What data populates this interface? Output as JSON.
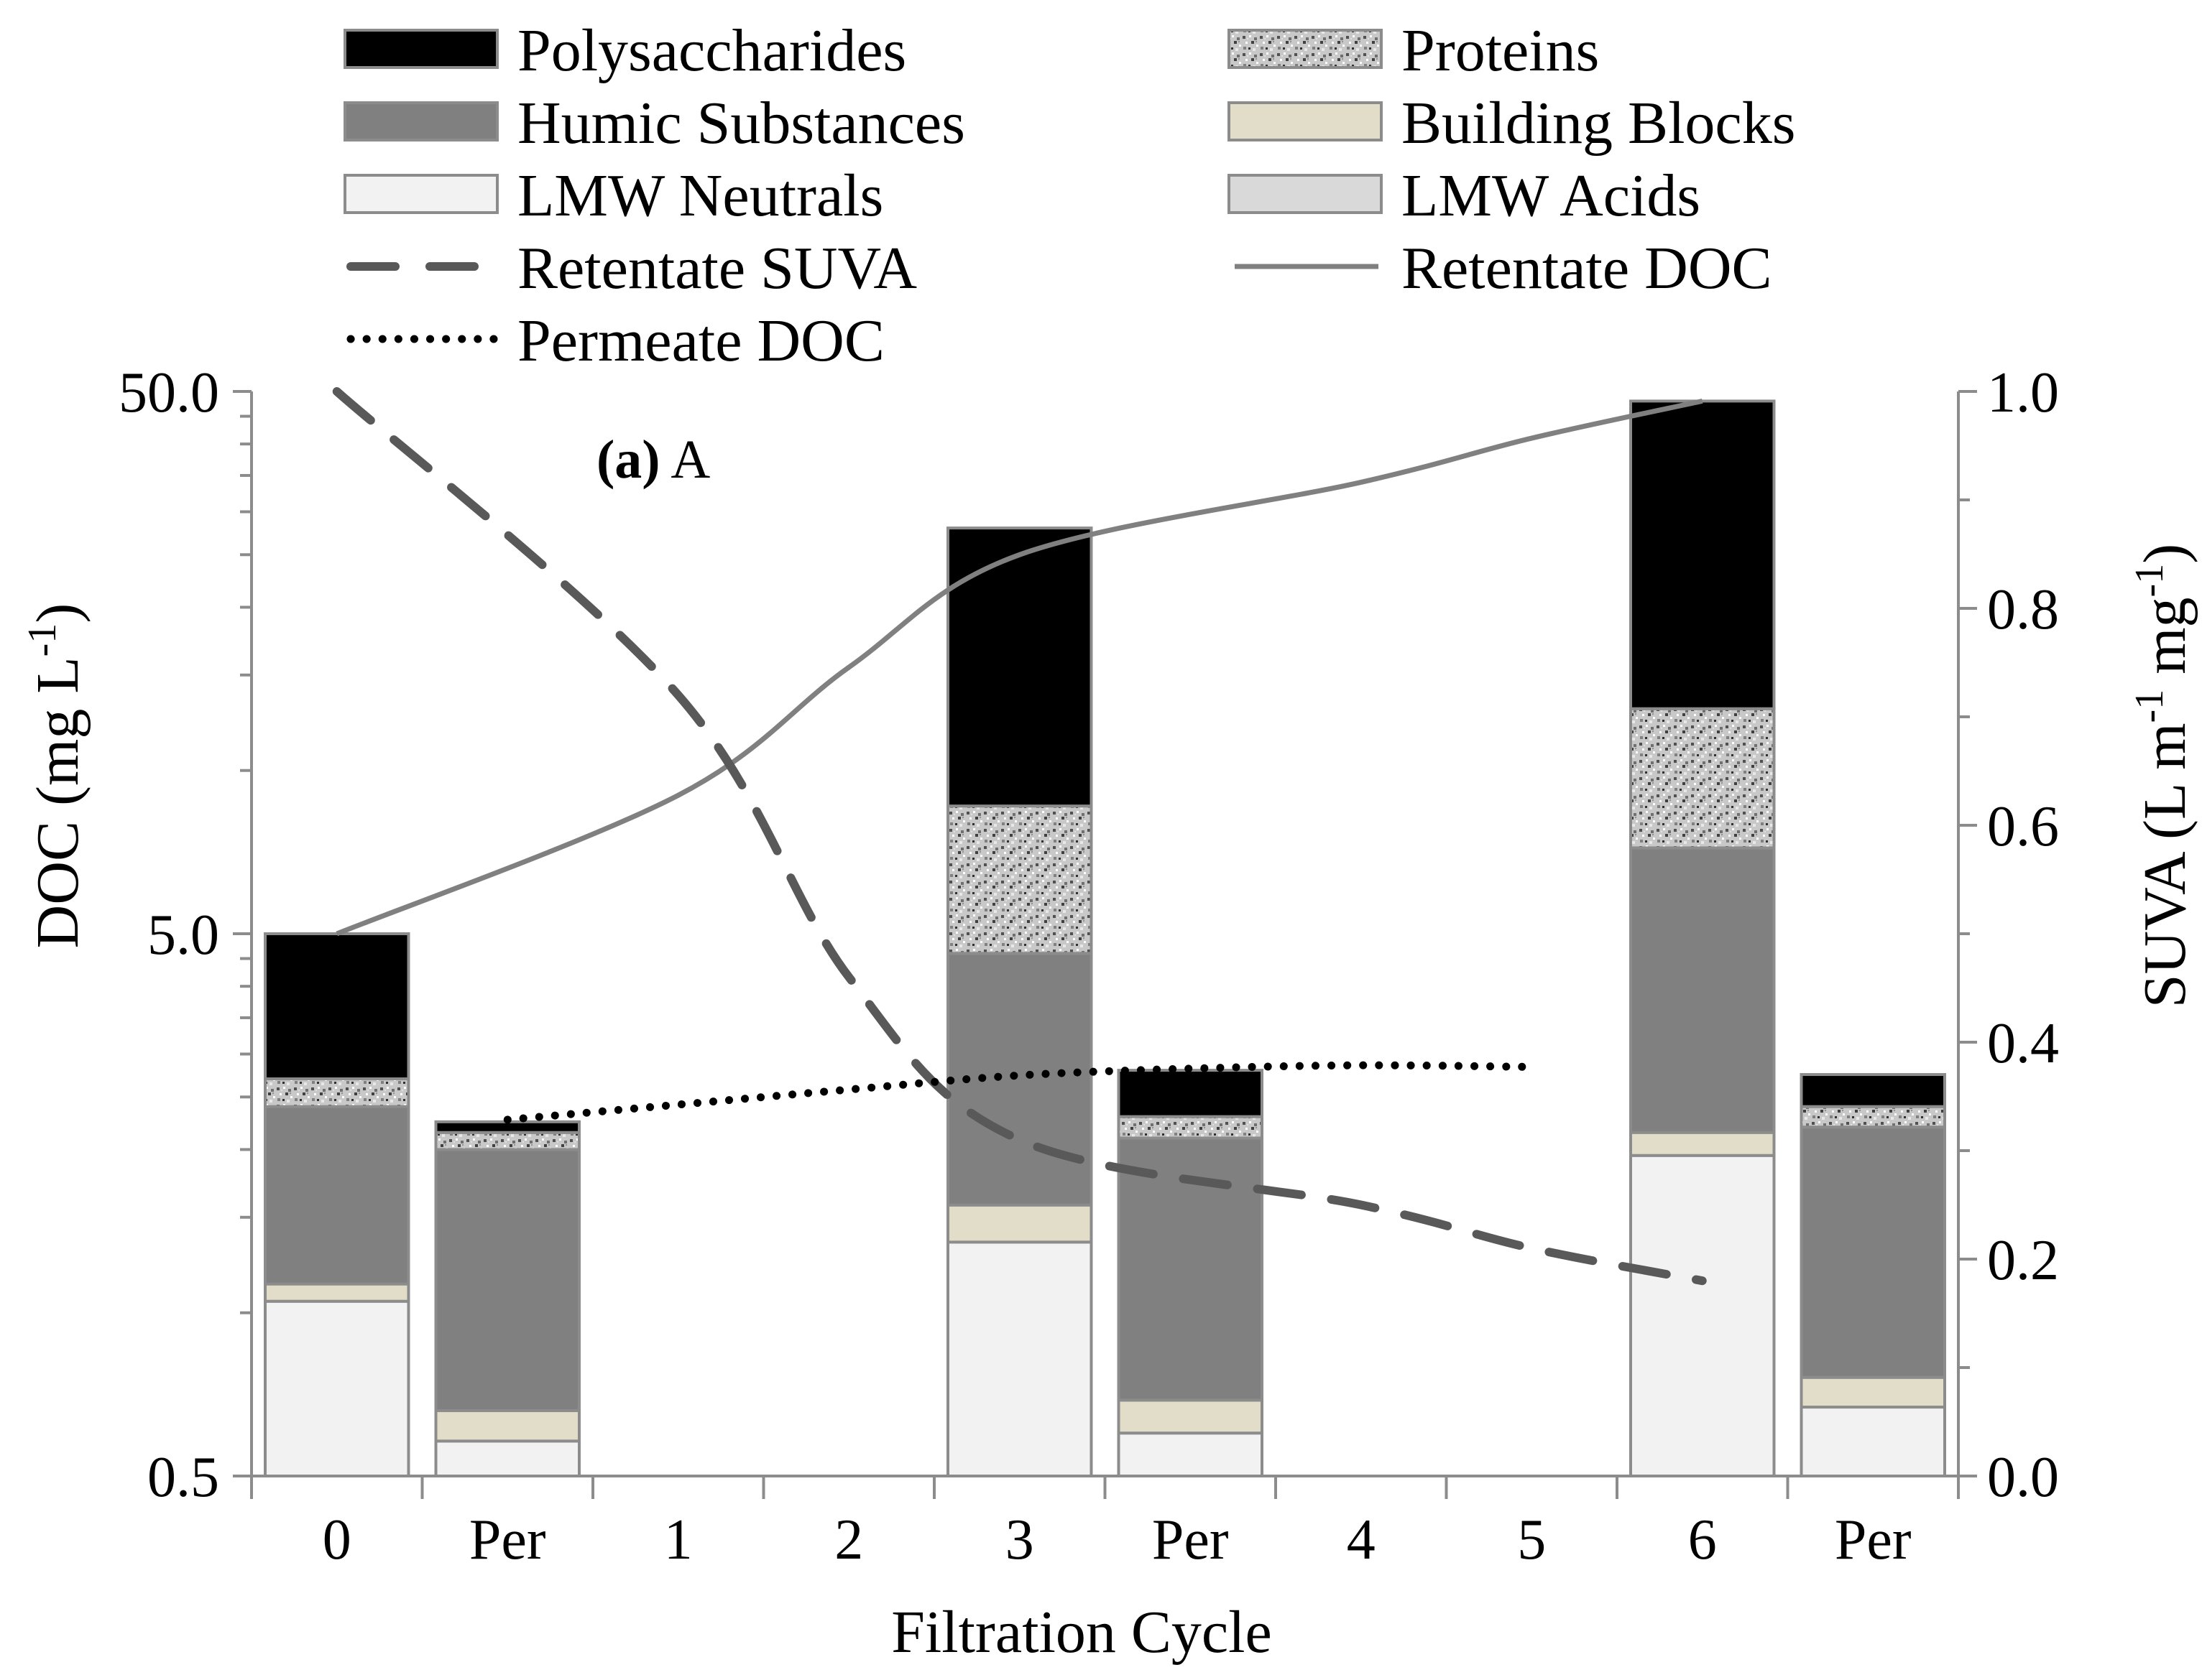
{
  "chart_data": {
    "type": "bar",
    "subtype": "stacked bar with overlaid lines, log left axis, secondary right axis",
    "panel_label": {
      "bold": "(a)",
      "text": " A"
    },
    "xlabel": "Filtration Cycle",
    "ylabel_left": {
      "prefix": "DOC (mg L",
      "sup": "-1",
      "suffix": ")"
    },
    "ylabel_right": {
      "prefix": "SUVA (L m",
      "sup1": "-1",
      "mid": " mg",
      "sup2": "-1",
      "suffix": ")"
    },
    "categories": [
      "0",
      "Per",
      "1",
      "2",
      "3",
      "Per",
      "4",
      "5",
      "6",
      "Per"
    ],
    "y_left_scale": "log",
    "ylim_left": [
      0.5,
      50.0
    ],
    "yticks_left": [
      "0.5",
      "5.0",
      "50.0"
    ],
    "ylim_right": [
      0.0,
      1.0
    ],
    "yticks_right": [
      "0.0",
      "0.2",
      "0.4",
      "0.6",
      "0.8",
      "1.0"
    ],
    "bar_slots": [
      0,
      1,
      4,
      5,
      8,
      9
    ],
    "bar_segments": [
      {
        "name": "LMW Neutrals",
        "color": "#f2f2f2",
        "pattern": "solid"
      },
      {
        "name": "Building Blocks",
        "color": "#e2ddc8",
        "pattern": "solid"
      },
      {
        "name": "Humic Substances",
        "color": "#808080",
        "pattern": "solid"
      },
      {
        "name": "Proteins",
        "color": "#c4c4c4",
        "pattern": "speckle"
      },
      {
        "name": "Polysaccharides",
        "color": "#000000",
        "pattern": "solid"
      }
    ],
    "bar_cumulative_tops": [
      [
        1.05,
        1.13,
        2.4,
        2.7,
        5.0
      ],
      [
        0.58,
        0.66,
        2.0,
        2.15,
        2.25
      ],
      [
        1.35,
        1.58,
        4.6,
        8.6,
        28.0
      ],
      [
        0.6,
        0.69,
        2.1,
        2.3,
        2.8
      ],
      [
        1.95,
        2.15,
        7.2,
        13.0,
        48.0
      ],
      [
        0.67,
        0.76,
        2.2,
        2.4,
        2.75
      ]
    ],
    "series": [
      {
        "name": "Retentate DOC",
        "axis": "left",
        "style": "solid",
        "color": "#808080",
        "x": [
          0,
          1,
          2,
          3,
          4,
          5,
          6
        ],
        "values": [
          5.0,
          9.0,
          15.5,
          25.0,
          34.0,
          41.0,
          48.0
        ]
      },
      {
        "name": "Retentate SUVA",
        "axis": "right",
        "style": "dashed",
        "color": "#595959",
        "x": [
          0,
          1,
          2,
          3,
          4,
          5,
          6
        ],
        "values": [
          1.0,
          0.72,
          0.46,
          0.31,
          0.25,
          0.21,
          0.18
        ]
      },
      {
        "name": "Permeate DOC",
        "axis": "left",
        "style": "dotted",
        "color": "#000000",
        "x": [
          1,
          2,
          3,
          4,
          5,
          6,
          7
        ],
        "values": [
          2.27,
          2.42,
          2.58,
          2.74,
          2.82,
          2.86,
          2.84
        ]
      }
    ],
    "legend": {
      "placement": "top",
      "columns": 2,
      "entries": [
        {
          "label": "Polysaccharides",
          "kind": "box",
          "color": "#000000"
        },
        {
          "label": "Proteins",
          "kind": "box",
          "color": "#c4c4c4",
          "pattern": "speckle"
        },
        {
          "label": "Humic Substances",
          "kind": "box",
          "color": "#808080"
        },
        {
          "label": "Building Blocks",
          "kind": "box",
          "color": "#e2ddc8"
        },
        {
          "label": "LMW Neutrals",
          "kind": "box",
          "color": "#f2f2f2"
        },
        {
          "label": "LMW Acids",
          "kind": "box",
          "color": "#d9d9d9"
        },
        {
          "label": "Retentate SUVA",
          "kind": "dashed",
          "color": "#595959"
        },
        {
          "label": "Retentate DOC",
          "kind": "solid",
          "color": "#808080"
        },
        {
          "label": "Permeate DOC",
          "kind": "dotted",
          "color": "#000000"
        }
      ]
    }
  }
}
